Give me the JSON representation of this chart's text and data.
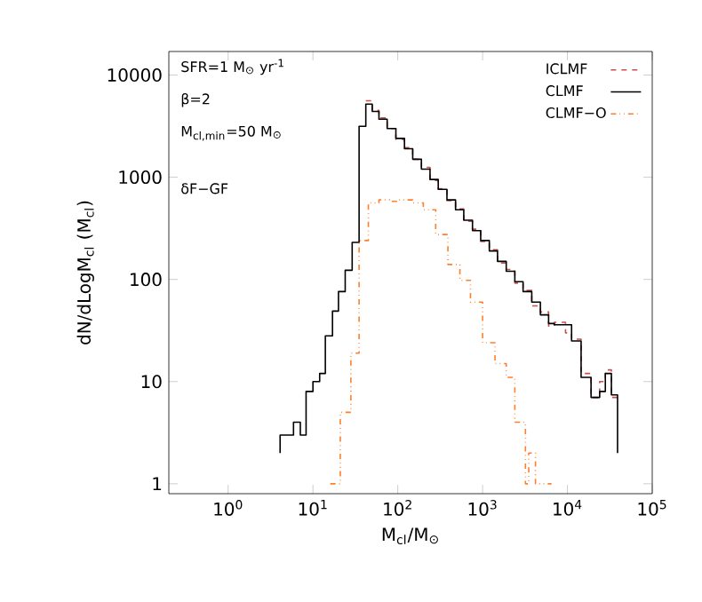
{
  "chart_data": {
    "type": "step",
    "xlabel": "M$_{cl}$/M$_{⊙}$",
    "ylabel": "dN/dLogM$_{cl}$ (M$_{cl}$)",
    "log": "xy",
    "xlim": [
      0.2,
      100000
    ],
    "ylim": [
      0.8,
      17000
    ],
    "xticks": [
      {
        "value": 1,
        "label": "10$^{0}$"
      },
      {
        "value": 10,
        "label": "10$^{1}$"
      },
      {
        "value": 100,
        "label": "10$^{2}$"
      },
      {
        "value": 1000,
        "label": "10$^{3}$"
      },
      {
        "value": 10000,
        "label": "10$^{4}$"
      },
      {
        "value": 100000,
        "label": "10$^{5}$"
      }
    ],
    "yticks": [
      1,
      10,
      100,
      1000,
      10000
    ],
    "legend": "top right",
    "annotations": [
      "SFR=1 M$_{⊙}$ yr$^{-1}$",
      "β=2",
      "M$_{cl,min}$=50 M$_{⊙}$",
      "δF−GF"
    ],
    "series": [
      {
        "name": "ICLMF",
        "color": "#c8504f",
        "line_style": "dashed",
        "x": [
          42,
          50,
          60,
          75,
          95,
          120,
          150,
          190,
          240,
          300,
          380,
          480,
          600,
          760,
          950,
          1200,
          1500,
          1900,
          2400,
          3000,
          3800,
          4800,
          6000,
          7000,
          9500,
          11200,
          14500,
          19000,
          24000,
          28000,
          33000,
          39000
        ],
        "values": [
          5600,
          4500,
          3800,
          3000,
          2350,
          1950,
          1500,
          1250,
          930,
          770,
          590,
          490,
          370,
          310,
          235,
          195,
          145,
          125,
          92,
          78,
          55,
          48,
          35,
          38,
          30,
          26,
          12,
          7,
          10,
          13,
          7,
          7
        ]
      },
      {
        "name": "CLMF",
        "color": "#000000",
        "line_style": "solid",
        "x": [
          4.1,
          4.1,
          5.9,
          7.1,
          8.3,
          10,
          12,
          14,
          17,
          20,
          24,
          29,
          35,
          42,
          50,
          60,
          75,
          95,
          120,
          150,
          190,
          240,
          300,
          380,
          480,
          600,
          760,
          950,
          1200,
          1500,
          1900,
          2400,
          3000,
          3800,
          4800,
          6000,
          7000,
          9500,
          11200,
          14500,
          19000,
          24000,
          28000,
          33000,
          39000
        ],
        "values": [
          2,
          3,
          4,
          3,
          8,
          10,
          12,
          28,
          49,
          76,
          123,
          230,
          3150,
          5200,
          4400,
          3700,
          3000,
          2400,
          1900,
          1500,
          1200,
          950,
          760,
          600,
          480,
          380,
          300,
          240,
          190,
          150,
          120,
          95,
          76,
          60,
          45,
          37,
          36,
          36,
          25,
          11,
          7,
          8,
          12,
          7.4,
          2
        ]
      },
      {
        "name": "CLMF−O",
        "color": "#ff7f2a",
        "line_style": "dashdotdot",
        "x": [
          16,
          21,
          28,
          35,
          45,
          60,
          80,
          100,
          150,
          200,
          280,
          390,
          540,
          720,
          1000,
          1400,
          1900,
          2400,
          3200,
          3500,
          4200,
          6500
        ],
        "values": [
          1,
          5,
          19,
          240,
          560,
          600,
          580,
          600,
          560,
          480,
          275,
          140,
          98,
          60,
          24,
          15,
          11,
          4,
          1,
          2,
          1,
          1
        ]
      }
    ]
  }
}
